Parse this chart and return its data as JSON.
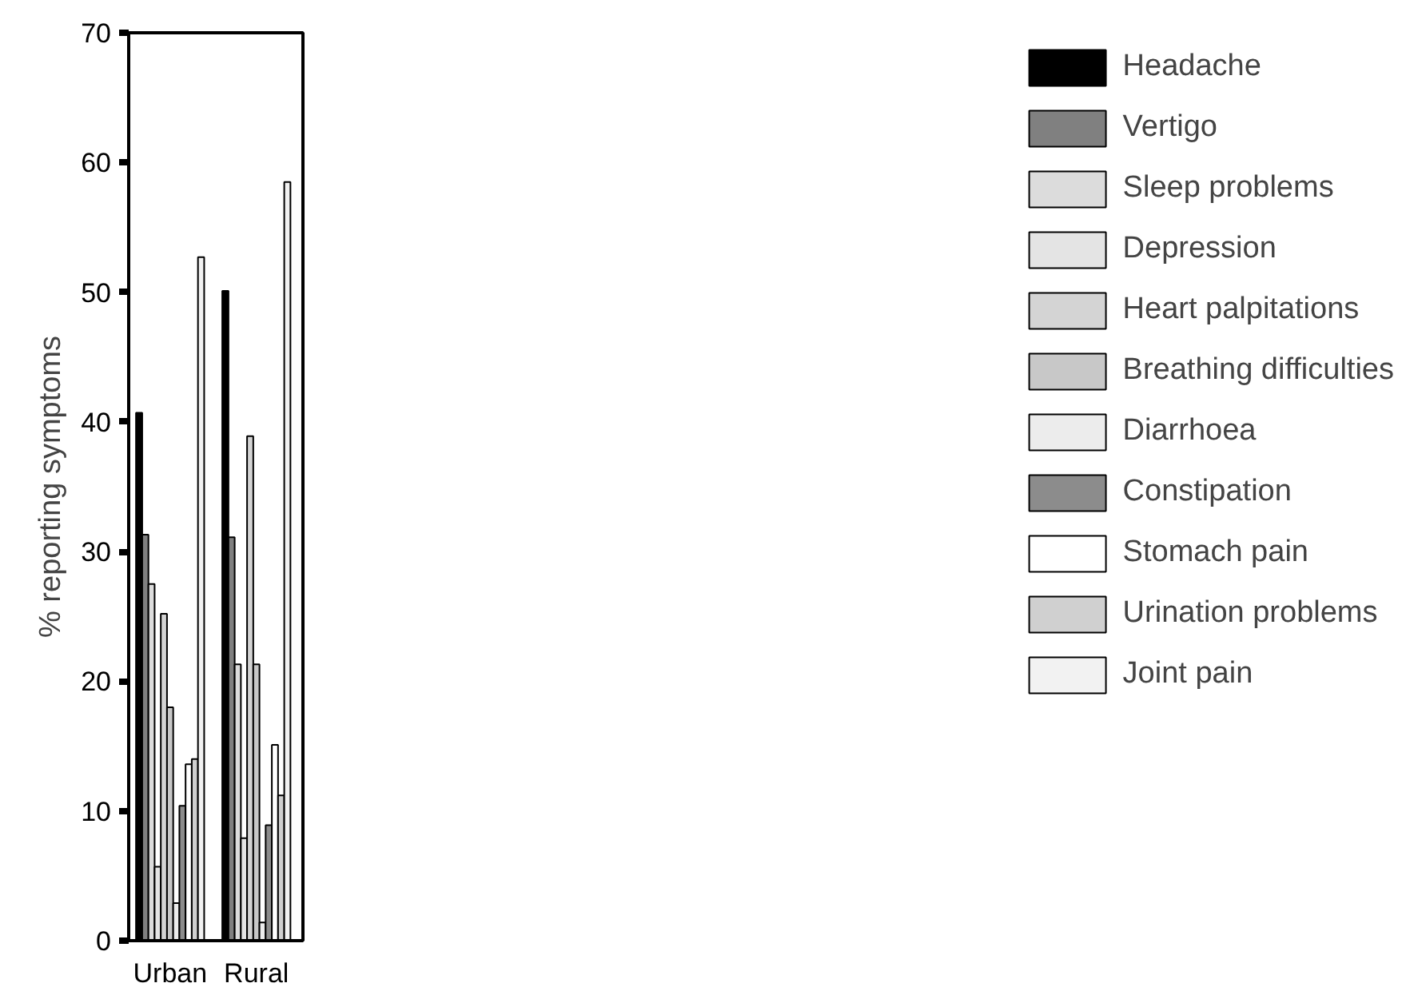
{
  "chart_data": {
    "type": "bar",
    "ylabel": "% reporting symptoms",
    "categories": [
      "Urban",
      "Rural"
    ],
    "series": [
      {
        "name": "Headache",
        "color": "#000000",
        "values": [
          40.7,
          50.1
        ]
      },
      {
        "name": "Vertigo",
        "color": "#808080",
        "values": [
          31.3,
          31.1
        ]
      },
      {
        "name": "Sleep problems",
        "color": "#dcdcdc",
        "values": [
          27.5,
          21.3
        ]
      },
      {
        "name": "Depression",
        "color": "#e4e4e4",
        "values": [
          5.7,
          7.9
        ]
      },
      {
        "name": "Heart palpitations",
        "color": "#d4d4d4",
        "values": [
          25.2,
          38.9
        ]
      },
      {
        "name": "Breathing difficulties",
        "color": "#c8c8c8",
        "values": [
          18.0,
          21.3
        ]
      },
      {
        "name": "Diarrhoea",
        "color": "#ececec",
        "values": [
          2.9,
          1.4
        ]
      },
      {
        "name": "Constipation",
        "color": "#8c8c8c",
        "values": [
          10.4,
          8.9
        ]
      },
      {
        "name": "Stomach pain",
        "color": "#ffffff",
        "values": [
          13.6,
          15.1
        ]
      },
      {
        "name": "Urination problems",
        "color": "#d0d0d0",
        "values": [
          14.0,
          11.2
        ]
      },
      {
        "name": "Joint pain",
        "color": "#f2f2f2",
        "values": [
          52.7,
          58.5
        ]
      }
    ],
    "ylim": [
      0,
      70
    ],
    "yticks": [
      0,
      10,
      20,
      30,
      40,
      50,
      60,
      70
    ],
    "grid": false,
    "legend": "right"
  }
}
